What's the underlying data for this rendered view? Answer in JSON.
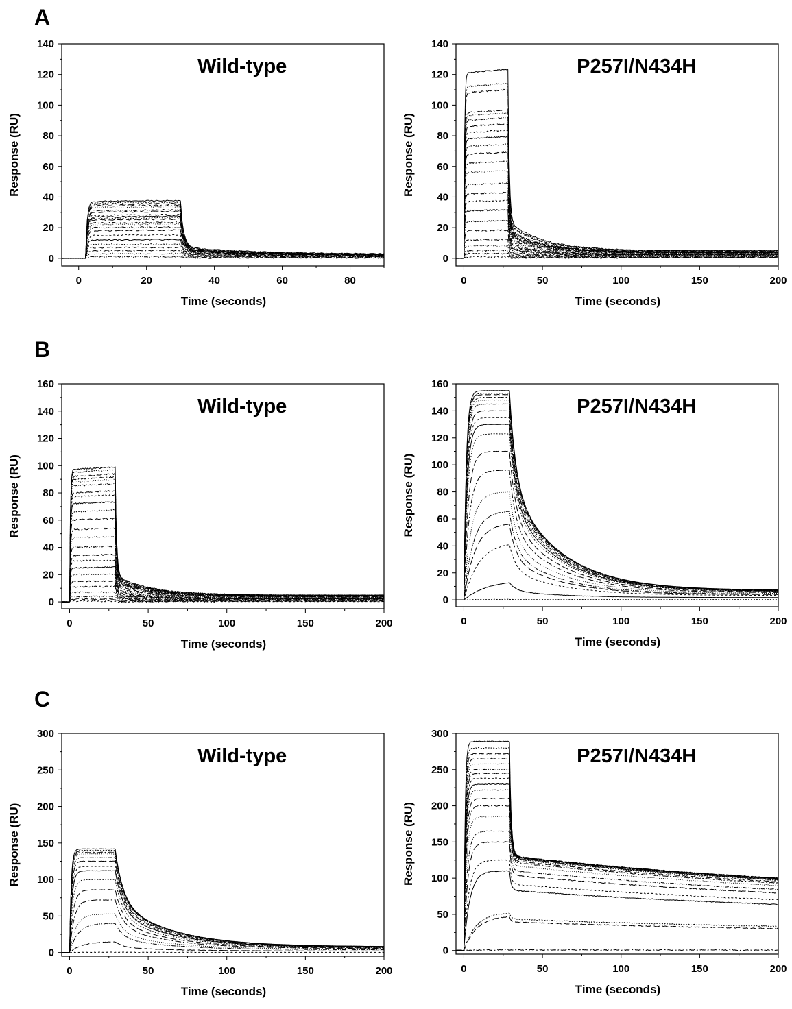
{
  "panel_labels": [
    "A",
    "B",
    "C"
  ],
  "chart_data": [
    {
      "id": "A-left",
      "panel": "A",
      "type": "line",
      "title": "Wild-type",
      "xlabel": "Time (seconds)",
      "ylabel": "Response (RU)",
      "xlim": [
        -5,
        90
      ],
      "ylim": [
        -5,
        140
      ],
      "xticks": [
        0,
        20,
        40,
        60,
        80
      ],
      "yticks": [
        0,
        20,
        40,
        60,
        80,
        100,
        120,
        140
      ],
      "grid": false,
      "legend": "none",
      "series_count": 22,
      "injection": {
        "start": 2,
        "end": 30
      },
      "plateaus": [
        37,
        36,
        35,
        34,
        33,
        31,
        30,
        28,
        27,
        26,
        25,
        23,
        22,
        20,
        18,
        15,
        12,
        9,
        7,
        5,
        3,
        1
      ],
      "tail_end": 2.5,
      "kinetics": "fast"
    },
    {
      "id": "A-right",
      "panel": "A",
      "type": "line",
      "title": "P257I/N434H",
      "xlabel": "Time (seconds)",
      "ylabel": "Response (RU)",
      "xlim": [
        -5,
        200
      ],
      "ylim": [
        -5,
        140
      ],
      "xticks": [
        0,
        50,
        100,
        150,
        200
      ],
      "yticks": [
        0,
        20,
        40,
        60,
        80,
        100,
        120,
        140
      ],
      "grid": false,
      "legend": "none",
      "series_count": 24,
      "injection": {
        "start": 0,
        "end": 28
      },
      "plateaus": [
        121,
        112,
        108,
        95,
        93,
        90,
        86,
        82,
        78,
        73,
        68,
        62,
        56,
        48,
        42,
        37,
        31,
        24,
        18,
        12,
        8,
        5,
        3,
        1
      ],
      "tail_end": 5,
      "kinetics": "fast"
    },
    {
      "id": "B-left",
      "panel": "B",
      "type": "line",
      "title": "Wild-type",
      "xlabel": "Time (seconds)",
      "ylabel": "Response (RU)",
      "xlim": [
        -5,
        200
      ],
      "ylim": [
        -5,
        160
      ],
      "xticks": [
        0,
        50,
        100,
        150,
        200
      ],
      "yticks": [
        0,
        20,
        40,
        60,
        80,
        100,
        120,
        140,
        160
      ],
      "grid": false,
      "legend": "none",
      "series_count": 24,
      "injection": {
        "start": 0,
        "end": 29
      },
      "plateaus": [
        97,
        95,
        92,
        90,
        88,
        85,
        80,
        77,
        72,
        66,
        60,
        53,
        47,
        40,
        34,
        30,
        25,
        20,
        15,
        11,
        7,
        4,
        2,
        0.5
      ],
      "tail_end": 5,
      "kinetics": "fast"
    },
    {
      "id": "B-right",
      "panel": "B",
      "type": "line",
      "title": "P257I/N434H",
      "xlabel": "Time (seconds)",
      "ylabel": "Response (RU)",
      "xlim": [
        -5,
        200
      ],
      "ylim": [
        -5,
        160
      ],
      "xticks": [
        0,
        50,
        100,
        150,
        200
      ],
      "yticks": [
        0,
        20,
        40,
        60,
        80,
        100,
        120,
        140,
        160
      ],
      "grid": false,
      "legend": "none",
      "series_count": 18,
      "injection": {
        "start": 0,
        "end": 29
      },
      "plateaus": [
        155,
        153,
        152,
        150,
        148,
        145,
        140,
        135,
        130,
        123,
        110,
        96,
        80,
        66,
        57,
        43,
        15,
        0.5
      ],
      "tail_end": 7,
      "kinetics": "slow"
    },
    {
      "id": "C-left",
      "panel": "C",
      "type": "line",
      "title": "Wild-type",
      "xlabel": "Time (seconds)",
      "ylabel": "Response (RU)",
      "xlim": [
        -5,
        200
      ],
      "ylim": [
        -5,
        300
      ],
      "xticks": [
        0,
        50,
        100,
        150,
        200
      ],
      "yticks": [
        0,
        50,
        100,
        150,
        200,
        250,
        300
      ],
      "grid": false,
      "legend": "none",
      "series_count": 16,
      "injection": {
        "start": 0,
        "end": 29
      },
      "plateaus": [
        142,
        140,
        139,
        137,
        135,
        130,
        125,
        118,
        112,
        100,
        86,
        72,
        53,
        40,
        15,
        0.5
      ],
      "tail_end": 8,
      "kinetics": "medium"
    },
    {
      "id": "C-right",
      "panel": "C",
      "type": "line",
      "title": "P257I/N434H",
      "xlabel": "Time (seconds)",
      "ylabel": "Response (RU)",
      "xlim": [
        -5,
        200
      ],
      "ylim": [
        -5,
        300
      ],
      "xticks": [
        0,
        50,
        100,
        150,
        200
      ],
      "yticks": [
        0,
        50,
        100,
        150,
        200,
        250,
        300
      ],
      "grid": false,
      "legend": "none",
      "series_count": 20,
      "injection": {
        "start": 0,
        "end": 29
      },
      "plateaus": [
        289,
        280,
        272,
        265,
        258,
        250,
        245,
        238,
        230,
        222,
        210,
        200,
        185,
        165,
        150,
        125,
        110,
        53,
        48,
        1
      ],
      "tail_end": 90,
      "kinetics": "very-slow"
    }
  ]
}
